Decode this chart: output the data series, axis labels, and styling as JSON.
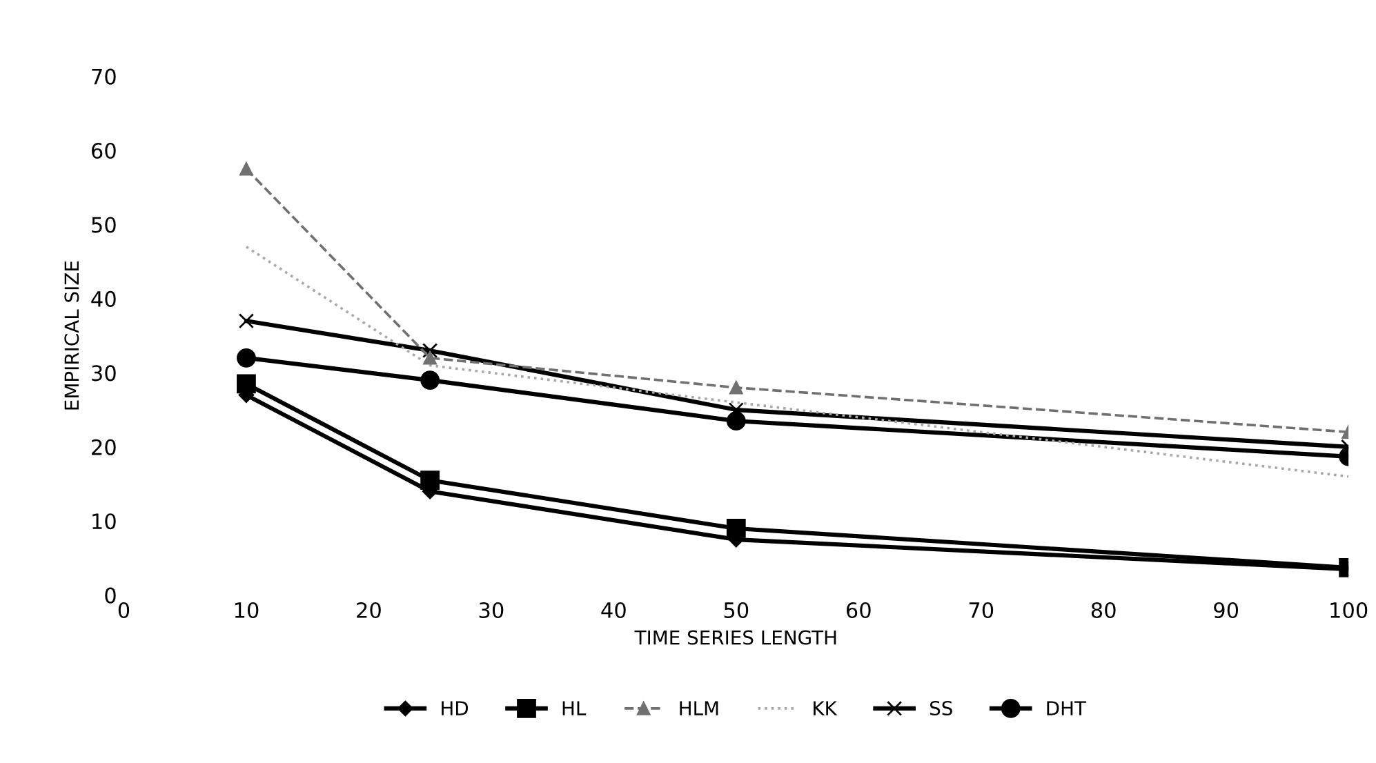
{
  "chart_data": {
    "type": "line",
    "xlabel": "TIME SERIES LENGTH",
    "ylabel": "EMPIRICAL SIZE",
    "x": [
      10,
      25,
      50,
      100
    ],
    "series": [
      {
        "name": "HD",
        "color": "#000000",
        "marker": "diamond",
        "line_style": "solid",
        "values": [
          27,
          14,
          7.5,
          3.5
        ]
      },
      {
        "name": "HL",
        "color": "#000000",
        "marker": "square",
        "line_style": "solid",
        "values": [
          28.5,
          15.5,
          9,
          3.7
        ]
      },
      {
        "name": "HLM",
        "color": "#707070",
        "marker": "triangle",
        "line_style": "dashed",
        "values": [
          57.5,
          32,
          28,
          22
        ]
      },
      {
        "name": "KK",
        "color": "#a8a8a8",
        "marker": "none",
        "line_style": "dotted",
        "values": [
          47,
          31,
          26,
          16
        ]
      },
      {
        "name": "SS",
        "color": "#000000",
        "marker": "cross",
        "line_style": "solid",
        "values": [
          37,
          33,
          25,
          20
        ]
      },
      {
        "name": "DHT",
        "color": "#000000",
        "marker": "circle",
        "line_style": "solid",
        "values": [
          32,
          29,
          23.5,
          18.7
        ]
      }
    ],
    "xlim": [
      0,
      100
    ],
    "xticks": [
      0,
      10,
      20,
      30,
      40,
      50,
      60,
      70,
      80,
      90,
      100
    ],
    "ylim": [
      0,
      70
    ],
    "yticks": [
      0,
      10,
      20,
      30,
      40,
      50,
      60,
      70
    ],
    "grid": false,
    "legend": "bottom"
  }
}
